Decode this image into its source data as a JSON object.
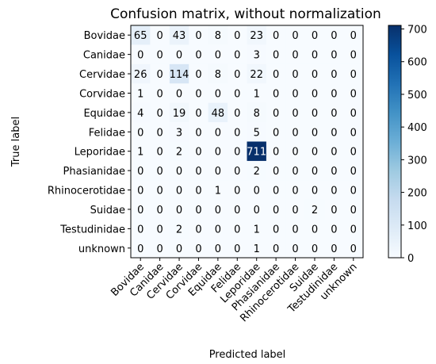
{
  "chart_data": {
    "type": "heatmap",
    "title": "Confusion matrix, without normalization",
    "xlabel": "Predicted label",
    "ylabel": "True label",
    "labels": [
      "Bovidae",
      "Canidae",
      "Cervidae",
      "Corvidae",
      "Equidae",
      "Felidae",
      "Leporidae",
      "Phasianidae",
      "Rhinocerotidae",
      "Suidae",
      "Testudinidae",
      "unknown"
    ],
    "matrix": [
      [
        65,
        0,
        43,
        0,
        8,
        0,
        23,
        0,
        0,
        0,
        0,
        0
      ],
      [
        0,
        0,
        0,
        0,
        0,
        0,
        3,
        0,
        0,
        0,
        0,
        0
      ],
      [
        26,
        0,
        114,
        0,
        8,
        0,
        22,
        0,
        0,
        0,
        0,
        0
      ],
      [
        1,
        0,
        0,
        0,
        0,
        0,
        1,
        0,
        0,
        0,
        0,
        0
      ],
      [
        4,
        0,
        19,
        0,
        48,
        0,
        8,
        0,
        0,
        0,
        0,
        0
      ],
      [
        0,
        0,
        3,
        0,
        0,
        0,
        5,
        0,
        0,
        0,
        0,
        0
      ],
      [
        1,
        0,
        2,
        0,
        0,
        0,
        711,
        0,
        0,
        0,
        0,
        0
      ],
      [
        0,
        0,
        0,
        0,
        0,
        0,
        2,
        0,
        0,
        0,
        0,
        0
      ],
      [
        0,
        0,
        0,
        0,
        1,
        0,
        0,
        0,
        0,
        0,
        0,
        0
      ],
      [
        0,
        0,
        0,
        0,
        0,
        0,
        0,
        0,
        0,
        2,
        0,
        0
      ],
      [
        0,
        0,
        2,
        0,
        0,
        0,
        1,
        0,
        0,
        0,
        0,
        0
      ],
      [
        0,
        0,
        0,
        0,
        0,
        0,
        1,
        0,
        0,
        0,
        0,
        0
      ]
    ],
    "colormap": "Blues",
    "vmin": 0,
    "vmax": 711,
    "colorbar_ticks": [
      0,
      100,
      200,
      300,
      400,
      500,
      600,
      700
    ],
    "grid": false,
    "colorbar_position": "right"
  }
}
